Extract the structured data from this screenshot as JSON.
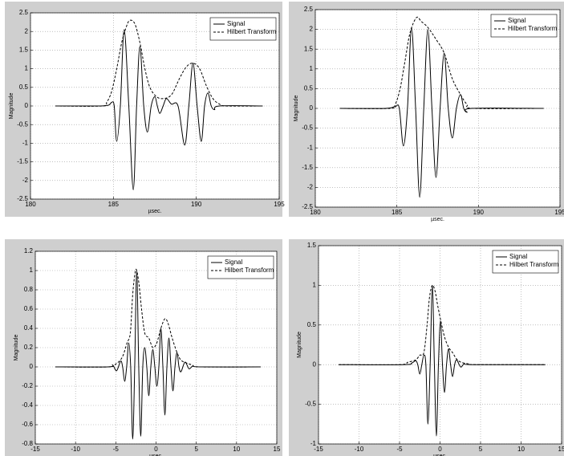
{
  "chart_data": [
    {
      "type": "line",
      "xlabel": "µsec.",
      "ylabel": "Magnitude",
      "xlim": [
        180,
        195
      ],
      "xticks": [
        180,
        185,
        190,
        195
      ],
      "ylim": [
        -2.5,
        2.5
      ],
      "yticks": [
        -2.5,
        -2,
        -1.5,
        -1,
        -0.5,
        0,
        0.5,
        1,
        1.5,
        2,
        2.5
      ],
      "grid": true,
      "legend": "upper right",
      "series": [
        {
          "name": "Signal",
          "color": "#000000",
          "linestyle": "solid",
          "x": [
            181.5,
            184,
            184.7,
            184.9,
            185.05,
            185.2,
            185.42,
            185.65,
            185.93,
            186.2,
            186.4,
            186.6,
            186.83,
            187.05,
            187.28,
            187.5,
            187.65,
            187.8,
            188.0,
            188.2,
            188.5,
            188.9,
            189.3,
            189.55,
            189.8,
            190.05,
            190.3,
            190.5,
            190.7,
            190.9,
            191.1,
            191.4,
            194
          ],
          "values": [
            0,
            0,
            0.02,
            0.1,
            0,
            -0.95,
            0,
            2.05,
            0,
            -2.25,
            0,
            1.6,
            0,
            -0.7,
            0,
            0.25,
            0,
            -0.2,
            0,
            0.2,
            0.05,
            0,
            -1.05,
            0,
            1.15,
            0,
            -0.95,
            0,
            0.35,
            0,
            -0.1,
            0,
            0
          ]
        },
        {
          "name": "Hilbert Transform",
          "color": "#000000",
          "linestyle": "dashed",
          "x": [
            181.5,
            184.3,
            184.6,
            184.9,
            185.2,
            185.5,
            185.8,
            186.0,
            186.3,
            186.6,
            186.9,
            187.2,
            187.6,
            188.0,
            188.5,
            189.0,
            189.4,
            189.8,
            190.2,
            190.6,
            191.0,
            191.4,
            191.8,
            194
          ],
          "values": [
            0,
            0,
            0.1,
            0.4,
            1.0,
            1.7,
            2.15,
            2.3,
            2.2,
            1.7,
            1.0,
            0.5,
            0.25,
            0.2,
            0.3,
            0.75,
            1.05,
            1.15,
            1.0,
            0.55,
            0.2,
            0.05,
            0,
            0
          ]
        }
      ]
    },
    {
      "type": "line",
      "xlabel": "µsec.",
      "ylabel": "Magnitude",
      "xlim": [
        180,
        195
      ],
      "xticks": [
        180,
        185,
        190,
        195
      ],
      "ylim": [
        -2.5,
        2.5
      ],
      "yticks": [
        -2.5,
        -2,
        -1.5,
        -1,
        -0.5,
        0,
        0.5,
        1,
        1.5,
        2,
        2.5
      ],
      "grid": true,
      "legend": "upper right",
      "series": [
        {
          "name": "Signal",
          "color": "#000000",
          "linestyle": "solid",
          "x": [
            181.5,
            184.3,
            184.9,
            185.15,
            185.4,
            185.65,
            185.9,
            186.15,
            186.4,
            186.65,
            186.9,
            187.15,
            187.4,
            187.65,
            187.9,
            188.15,
            188.4,
            188.65,
            188.9,
            189.1,
            189.3,
            189.6,
            194
          ],
          "values": [
            0,
            0,
            0.05,
            0,
            -0.95,
            0,
            2.05,
            0,
            -2.25,
            0,
            2.0,
            0,
            -1.75,
            0,
            1.4,
            0,
            -0.75,
            0,
            0.35,
            0,
            -0.1,
            0,
            0
          ]
        },
        {
          "name": "Hilbert Transform",
          "color": "#000000",
          "linestyle": "dashed",
          "x": [
            181.5,
            184.6,
            184.9,
            185.2,
            185.5,
            185.8,
            186.2,
            186.5,
            186.9,
            187.4,
            187.9,
            188.4,
            188.9,
            189.3,
            189.7,
            194
          ],
          "values": [
            0,
            0,
            0.1,
            0.5,
            1.2,
            1.9,
            2.3,
            2.2,
            2.05,
            1.75,
            1.4,
            0.75,
            0.35,
            0.1,
            0,
            0
          ]
        }
      ]
    },
    {
      "type": "line",
      "xlabel": "µsec.",
      "ylabel": "Magnitude",
      "xlim": [
        -15,
        15
      ],
      "xticks": [
        -15,
        -10,
        -5,
        0,
        5,
        10,
        15
      ],
      "ylim": [
        -0.8,
        1.2
      ],
      "yticks": [
        -0.8,
        -0.6,
        -0.4,
        -0.2,
        0,
        0.2,
        0.4,
        0.6,
        0.8,
        1,
        1.2
      ],
      "grid": true,
      "legend": "upper right",
      "series": [
        {
          "name": "Signal",
          "color": "#000000",
          "linestyle": "solid",
          "x": [
            -12.5,
            -6,
            -5.4,
            -4.9,
            -4.4,
            -4.15,
            -3.9,
            -3.65,
            -3.4,
            -3.15,
            -2.9,
            -2.65,
            -2.4,
            -2.15,
            -1.9,
            -1.65,
            -1.4,
            -1.15,
            -0.9,
            -0.65,
            -0.4,
            -0.15,
            0.1,
            0.35,
            0.6,
            0.85,
            1.1,
            1.35,
            1.6,
            1.85,
            2.1,
            2.35,
            2.6,
            2.85,
            3.1,
            3.6,
            4.1,
            4.6,
            5.5,
            13
          ],
          "values": [
            0,
            0,
            0.02,
            -0.04,
            0.06,
            0,
            -0.15,
            0,
            0.25,
            0,
            -0.75,
            0,
            1.0,
            0,
            -0.72,
            0,
            0.2,
            0,
            -0.3,
            0,
            0.18,
            0,
            -0.2,
            0,
            0.4,
            0,
            -0.5,
            0,
            0.3,
            0,
            -0.25,
            0,
            0.15,
            0,
            -0.05,
            0.05,
            -0.02,
            0.01,
            0,
            0
          ]
        },
        {
          "name": "Hilbert Transform",
          "color": "#000000",
          "linestyle": "dashed",
          "x": [
            -12.5,
            -6,
            -5,
            -4.2,
            -3.6,
            -3.2,
            -2.9,
            -2.6,
            -2.4,
            -2.1,
            -1.8,
            -1.4,
            -0.9,
            -0.4,
            0.1,
            0.6,
            1.1,
            1.5,
            2.0,
            2.6,
            3.1,
            3.8,
            4.5,
            5.5,
            13
          ],
          "values": [
            0,
            0,
            0.03,
            0.1,
            0.25,
            0.35,
            0.75,
            0.98,
            1.0,
            0.85,
            0.6,
            0.35,
            0.3,
            0.2,
            0.25,
            0.4,
            0.5,
            0.45,
            0.3,
            0.15,
            0.07,
            0.04,
            0.02,
            0,
            0
          ]
        }
      ]
    },
    {
      "type": "line",
      "xlabel": "µsec.",
      "ylabel": "Magnitude",
      "xlim": [
        -15,
        15
      ],
      "xticks": [
        -15,
        -10,
        -5,
        0,
        5,
        10,
        15
      ],
      "ylim": [
        -1,
        1.5
      ],
      "yticks": [
        -1,
        -0.5,
        0,
        0.5,
        1,
        1.5
      ],
      "grid": true,
      "legend": "upper right",
      "series": [
        {
          "name": "Signal",
          "color": "#000000",
          "linestyle": "solid",
          "x": [
            -12.5,
            -4.5,
            -3.5,
            -3.0,
            -2.75,
            -2.5,
            -2.25,
            -2.0,
            -1.75,
            -1.5,
            -1.22,
            -0.95,
            -0.7,
            -0.45,
            -0.2,
            0.05,
            0.3,
            0.55,
            0.8,
            1.05,
            1.3,
            1.55,
            1.8,
            2.05,
            2.55,
            3.0,
            4,
            13
          ],
          "values": [
            0,
            0,
            0.02,
            0.05,
            0,
            -0.12,
            0,
            0.12,
            0,
            -0.75,
            0,
            1.0,
            0,
            -0.9,
            0,
            0.55,
            0,
            -0.35,
            0,
            0.2,
            0,
            -0.15,
            0,
            0.06,
            -0.03,
            0.01,
            0,
            0
          ]
        },
        {
          "name": "Hilbert Transform",
          "color": "#000000",
          "linestyle": "dashed",
          "x": [
            -12.5,
            -5,
            -4,
            -3,
            -2.5,
            -2.0,
            -1.6,
            -1.3,
            -0.95,
            -0.6,
            -0.3,
            0.1,
            0.55,
            1.05,
            1.55,
            2.05,
            2.6,
            3.5,
            4.5,
            13
          ],
          "values": [
            0,
            0,
            0.03,
            0.06,
            0.12,
            0.15,
            0.5,
            0.85,
            1.0,
            0.92,
            0.75,
            0.55,
            0.35,
            0.22,
            0.15,
            0.07,
            0.03,
            0.01,
            0,
            0
          ]
        }
      ]
    }
  ]
}
